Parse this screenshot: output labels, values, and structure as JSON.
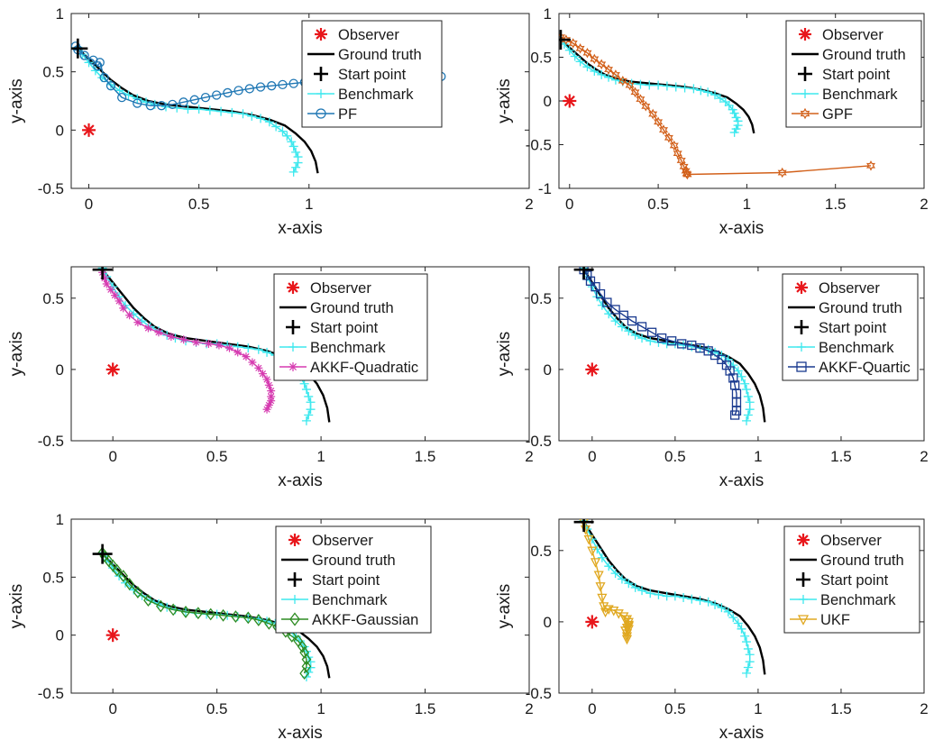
{
  "chart_data": [
    {
      "type": "line",
      "xlabel": "x-axis",
      "ylabel": "y-axis",
      "xlim": [
        -0.08,
        2
      ],
      "ylim": [
        -0.5,
        1
      ],
      "xticks": [
        {
          "v": 0,
          "t": "0"
        },
        {
          "v": 0.5,
          "t": "0.5"
        },
        {
          "v": 1,
          "t": "1"
        },
        {
          "v": 2,
          "t": "2"
        }
      ],
      "yticks": [
        {
          "v": -0.5,
          "t": "-0.5"
        },
        {
          "v": 0,
          "t": "0"
        },
        {
          "v": 0.5,
          "t": "0.5"
        },
        {
          "v": 1,
          "t": "1"
        }
      ],
      "observer": [
        0,
        0
      ],
      "start": [
        -0.05,
        0.7
      ],
      "legend": [
        "Observer",
        "Ground truth",
        "Start point",
        "Benchmark",
        "PF"
      ],
      "filter": {
        "name": "PF",
        "color": "#1f77b4",
        "marker": "circle",
        "x": [
          -0.06,
          -0.05,
          -0.02,
          0.02,
          0.04,
          0.05,
          0.07,
          0.1,
          0.15,
          0.22,
          0.28,
          0.33,
          0.38,
          0.43,
          0.48,
          0.53,
          0.58,
          0.63,
          0.68,
          0.73,
          0.78,
          0.83,
          0.88,
          0.93,
          0.98,
          1.03,
          1.08,
          1.13,
          1.18,
          1.24,
          1.3,
          1.36,
          1.4,
          1.6
        ],
        "y": [
          0.72,
          0.69,
          0.64,
          0.6,
          0.55,
          0.58,
          0.45,
          0.38,
          0.28,
          0.23,
          0.21,
          0.21,
          0.22,
          0.24,
          0.26,
          0.28,
          0.3,
          0.32,
          0.34,
          0.355,
          0.37,
          0.38,
          0.39,
          0.4,
          0.41,
          0.415,
          0.42,
          0.425,
          0.43,
          0.43,
          0.435,
          0.44,
          0.45,
          0.46
        ]
      }
    },
    {
      "type": "line",
      "xlabel": "x-axis",
      "ylabel": "y-axis",
      "xlim": [
        -0.06,
        2
      ],
      "ylim": [
        -1,
        1
      ],
      "xticks": [
        {
          "v": 0,
          "t": "0"
        },
        {
          "v": 0.5,
          "t": "0.5"
        },
        {
          "v": 1,
          "t": "1"
        },
        {
          "v": 1.5,
          "t": "1.5"
        },
        {
          "v": 2,
          "t": "2"
        }
      ],
      "yticks": [
        {
          "v": -1,
          "t": "-1"
        },
        {
          "v": -0.5,
          "t": "-0.5"
        },
        {
          "v": 0,
          "t": "0"
        },
        {
          "v": 0.5,
          "t": "0.5"
        },
        {
          "v": 1,
          "t": "1"
        }
      ],
      "observer": [
        0,
        0
      ],
      "start": [
        -0.05,
        0.7
      ],
      "legend": [
        "Observer",
        "Ground truth",
        "Start point",
        "Benchmark",
        "GPF"
      ],
      "filter": {
        "name": "GPF",
        "color": "#d2601a",
        "marker": "hexagram",
        "x": [
          -0.05,
          -0.02,
          0.02,
          0.06,
          0.1,
          0.14,
          0.18,
          0.22,
          0.26,
          0.3,
          0.34,
          0.37,
          0.4,
          0.43,
          0.47,
          0.5,
          0.53,
          0.56,
          0.59,
          0.61,
          0.63,
          0.645,
          0.655,
          0.66,
          0.665,
          1.2,
          1.7
        ],
        "y": [
          0.73,
          0.7,
          0.66,
          0.6,
          0.55,
          0.48,
          0.42,
          0.36,
          0.3,
          0.23,
          0.18,
          0.1,
          0.02,
          -0.06,
          -0.15,
          -0.24,
          -0.33,
          -0.42,
          -0.51,
          -0.6,
          -0.68,
          -0.75,
          -0.8,
          -0.83,
          -0.84,
          -0.82,
          -0.74
        ]
      }
    },
    {
      "type": "line",
      "xlabel": "x-axis",
      "ylabel": "y-axis",
      "xlim": [
        -0.2,
        2
      ],
      "ylim": [
        -0.5,
        0.72
      ],
      "xticks": [
        {
          "v": 0,
          "t": "0"
        },
        {
          "v": 0.5,
          "t": "0.5"
        },
        {
          "v": 1,
          "t": "1"
        },
        {
          "v": 1.5,
          "t": "1.5"
        },
        {
          "v": 2,
          "t": "2"
        }
      ],
      "yticks": [
        {
          "v": -0.5,
          "t": "-0.5"
        },
        {
          "v": 0,
          "t": "0"
        },
        {
          "v": 0.5,
          "t": "0.5"
        }
      ],
      "observer": [
        0,
        0
      ],
      "start": [
        -0.05,
        0.7
      ],
      "legend": [
        "Observer",
        "Ground truth",
        "Start point",
        "Benchmark",
        "AKKF-Quadratic"
      ],
      "filter": {
        "name": "AKKF-Quadratic",
        "color": "#d63bb0",
        "marker": "asterisk",
        "x": [
          -0.05,
          -0.04,
          -0.03,
          -0.01,
          0.01,
          0.03,
          0.05,
          0.08,
          0.12,
          0.17,
          0.22,
          0.28,
          0.34,
          0.4,
          0.46,
          0.51,
          0.56,
          0.6,
          0.64,
          0.67,
          0.7,
          0.72,
          0.74,
          0.75,
          0.76,
          0.76,
          0.76,
          0.75,
          0.74
        ],
        "y": [
          0.68,
          0.64,
          0.6,
          0.56,
          0.52,
          0.48,
          0.43,
          0.38,
          0.33,
          0.29,
          0.26,
          0.23,
          0.21,
          0.19,
          0.18,
          0.17,
          0.15,
          0.12,
          0.09,
          0.05,
          0.01,
          -0.03,
          -0.07,
          -0.11,
          -0.15,
          -0.19,
          -0.22,
          -0.25,
          -0.28
        ]
      }
    },
    {
      "type": "line",
      "xlabel": "x-axis",
      "ylabel": "y-axis",
      "xlim": [
        -0.2,
        2
      ],
      "ylim": [
        -0.5,
        0.72
      ],
      "xticks": [
        {
          "v": 0,
          "t": "0"
        },
        {
          "v": 0.5,
          "t": "0.5"
        },
        {
          "v": 1,
          "t": "1"
        },
        {
          "v": 1.5,
          "t": "1.5"
        },
        {
          "v": 2,
          "t": "2"
        }
      ],
      "yticks": [
        {
          "v": -0.5,
          "t": "-0.5"
        },
        {
          "v": 0,
          "t": "0"
        },
        {
          "v": 0.5,
          "t": "0.5"
        }
      ],
      "observer": [
        0,
        0
      ],
      "start": [
        -0.05,
        0.7
      ],
      "legend": [
        "Observer",
        "Ground truth",
        "Start point",
        "Benchmark",
        "AKKF-Quartic"
      ],
      "filter": {
        "name": "AKKF-Quartic",
        "color": "#1a3a8f",
        "marker": "square",
        "x": [
          -0.05,
          -0.03,
          -0.01,
          0.02,
          0.05,
          0.09,
          0.14,
          0.19,
          0.24,
          0.3,
          0.36,
          0.42,
          0.48,
          0.54,
          0.6,
          0.65,
          0.7,
          0.74,
          0.78,
          0.81,
          0.83,
          0.85,
          0.86,
          0.87,
          0.87,
          0.87,
          0.86
        ],
        "y": [
          0.7,
          0.66,
          0.62,
          0.58,
          0.53,
          0.47,
          0.42,
          0.38,
          0.34,
          0.3,
          0.26,
          0.22,
          0.2,
          0.18,
          0.17,
          0.15,
          0.13,
          0.1,
          0.07,
          0.03,
          -0.01,
          -0.06,
          -0.11,
          -0.17,
          -0.23,
          -0.29,
          -0.32
        ]
      }
    },
    {
      "type": "line",
      "xlabel": "x-axis",
      "ylabel": "y-axis",
      "xlim": [
        -0.2,
        2
      ],
      "ylim": [
        -0.5,
        1
      ],
      "xticks": [
        {
          "v": 0,
          "t": "0"
        },
        {
          "v": 0.5,
          "t": "0.5"
        },
        {
          "v": 1,
          "t": "1"
        },
        {
          "v": 1.5,
          "t": "1.5"
        },
        {
          "v": 2,
          "t": "2"
        }
      ],
      "yticks": [
        {
          "v": -0.5,
          "t": "-0.5"
        },
        {
          "v": 0,
          "t": "0"
        },
        {
          "v": 0.5,
          "t": "0.5"
        },
        {
          "v": 1,
          "t": "1"
        }
      ],
      "observer": [
        0,
        0
      ],
      "start": [
        -0.05,
        0.7
      ],
      "legend": [
        "Observer",
        "Ground truth",
        "Start point",
        "Benchmark",
        "AKKF-Gaussian"
      ],
      "filter": {
        "name": "AKKF-Gaussian",
        "color": "#2e8b22",
        "marker": "diamond",
        "x": [
          -0.05,
          -0.04,
          -0.02,
          0,
          0.02,
          0.05,
          0.08,
          0.12,
          0.17,
          0.23,
          0.29,
          0.35,
          0.41,
          0.47,
          0.53,
          0.59,
          0.65,
          0.7,
          0.75,
          0.79,
          0.83,
          0.86,
          0.89,
          0.91,
          0.92,
          0.93,
          0.93,
          0.92
        ],
        "y": [
          0.71,
          0.68,
          0.64,
          0.6,
          0.56,
          0.51,
          0.44,
          0.37,
          0.3,
          0.25,
          0.22,
          0.2,
          0.19,
          0.18,
          0.17,
          0.16,
          0.15,
          0.13,
          0.1,
          0.07,
          0.03,
          -0.01,
          -0.05,
          -0.1,
          -0.15,
          -0.21,
          -0.27,
          -0.33
        ]
      }
    },
    {
      "type": "line",
      "xlabel": "x-axis",
      "ylabel": "y-axis",
      "xlim": [
        -0.2,
        2
      ],
      "ylim": [
        -0.5,
        0.72
      ],
      "xticks": [
        {
          "v": 0,
          "t": "0"
        },
        {
          "v": 0.5,
          "t": "0.5"
        },
        {
          "v": 1,
          "t": "1"
        },
        {
          "v": 1.5,
          "t": "1.5"
        },
        {
          "v": 2,
          "t": "2"
        }
      ],
      "yticks": [
        {
          "v": -0.5,
          "t": "-0.5"
        },
        {
          "v": 0,
          "t": "0"
        },
        {
          "v": 0.5,
          "t": "0.5"
        }
      ],
      "observer": [
        0,
        0
      ],
      "start": [
        -0.05,
        0.7
      ],
      "legend": [
        "Observer",
        "Ground truth",
        "Start point",
        "Benchmark",
        "UKF"
      ],
      "filter": {
        "name": "UKF",
        "color": "#e0a820",
        "marker": "triangle-down",
        "x": [
          -0.05,
          -0.04,
          -0.02,
          0,
          0.02,
          0.04,
          0.05,
          0.06,
          0.07,
          0.08,
          0.1,
          0.13,
          0.16,
          0.19,
          0.21,
          0.22,
          0.22,
          0.21,
          0.2,
          0.21,
          0.22,
          0.21,
          0.2,
          0.22,
          0.21,
          0.22
        ],
        "y": [
          0.7,
          0.65,
          0.58,
          0.5,
          0.42,
          0.33,
          0.25,
          0.17,
          0.11,
          0.07,
          0.09,
          0.08,
          0.06,
          0.04,
          0.02,
          0,
          -0.02,
          -0.04,
          -0.06,
          -0.08,
          -0.03,
          -0.1,
          0.02,
          -0.05,
          -0.12,
          -0.02
        ]
      }
    }
  ],
  "common": {
    "ground_truth": {
      "x": [
        -0.05,
        0.0,
        0.05,
        0.1,
        0.15,
        0.2,
        0.27,
        0.35,
        0.45,
        0.55,
        0.65,
        0.74,
        0.82,
        0.89,
        0.94,
        0.98,
        1.01,
        1.03,
        1.04
      ],
      "y": [
        0.7,
        0.61,
        0.52,
        0.43,
        0.36,
        0.3,
        0.25,
        0.22,
        0.2,
        0.18,
        0.16,
        0.13,
        0.09,
        0.04,
        -0.03,
        -0.1,
        -0.18,
        -0.27,
        -0.37
      ]
    },
    "benchmark": {
      "x": [
        -0.05,
        -0.03,
        0.0,
        0.03,
        0.06,
        0.1,
        0.14,
        0.18,
        0.22,
        0.26,
        0.3,
        0.35,
        0.4,
        0.45,
        0.5,
        0.55,
        0.6,
        0.65,
        0.7,
        0.74,
        0.78,
        0.82,
        0.85,
        0.88,
        0.9,
        0.92,
        0.93,
        0.94,
        0.95,
        0.95,
        0.94,
        0.93
      ],
      "y": [
        0.71,
        0.65,
        0.58,
        0.51,
        0.45,
        0.39,
        0.34,
        0.3,
        0.27,
        0.24,
        0.22,
        0.2,
        0.19,
        0.18,
        0.18,
        0.17,
        0.16,
        0.15,
        0.14,
        0.12,
        0.1,
        0.07,
        0.03,
        -0.01,
        -0.05,
        -0.1,
        -0.14,
        -0.19,
        -0.23,
        -0.28,
        -0.32,
        -0.36
      ]
    },
    "colors": {
      "observer": "#e8161b",
      "ground_truth": "#000000",
      "start": "#000000",
      "benchmark": "#3ee8ee"
    }
  }
}
